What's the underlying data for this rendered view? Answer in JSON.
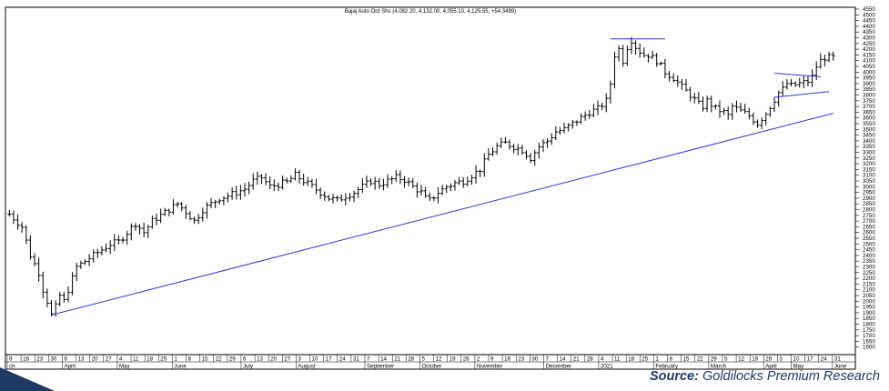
{
  "chart_data": {
    "type": "ohlc",
    "title": "Bajaj Auto Ord Shs (4,082.20, 4,132.00, 4,055.10, 4,125.55, +54.3499)",
    "ylim": [
      1550,
      4550
    ],
    "ylabels": [
      "4550",
      "4500",
      "4450",
      "4400",
      "4350",
      "4300",
      "4250",
      "4200",
      "4150",
      "4100",
      "4050",
      "4000",
      "3950",
      "3900",
      "3850",
      "3800",
      "3750",
      "3700",
      "3650",
      "3600",
      "3550",
      "3500",
      "3450",
      "3400",
      "3350",
      "3300",
      "3250",
      "3200",
      "3150",
      "3100",
      "3050",
      "3000",
      "2950",
      "2900",
      "2850",
      "2800",
      "2750",
      "2700",
      "2650",
      "2600",
      "2550",
      "2500",
      "2450",
      "2400",
      "2350",
      "2300",
      "2250",
      "2200",
      "2150",
      "2100",
      "2050",
      "2000",
      "1950",
      "1900",
      "1850",
      "1800",
      "1750",
      "1700",
      "1650",
      "1600"
    ],
    "date_ticks": [
      "9",
      "16",
      "23",
      "30",
      "6",
      "13",
      "20",
      "27",
      "4",
      "11",
      "18",
      "25",
      "1",
      "8",
      "15",
      "22",
      "29",
      "6",
      "13",
      "20",
      "27",
      "3",
      "10",
      "17",
      "24",
      "31",
      "7",
      "14",
      "21",
      "28",
      "5",
      "12",
      "19",
      "26",
      "2",
      "9",
      "16",
      "23",
      "30",
      "7",
      "14",
      "21",
      "28",
      "4",
      "11",
      "18",
      "25",
      "1",
      "8",
      "15",
      "22",
      "29",
      "5",
      "12",
      "19",
      "26",
      "3",
      "10",
      "17",
      "24",
      "31"
    ],
    "month_labels": [
      "ch",
      "April",
      "May",
      "June",
      "July",
      "August",
      "September",
      "October",
      "November",
      "December",
      "2021",
      "February",
      "March",
      "April",
      "May",
      "June"
    ],
    "series": [
      {
        "path": [
          [
            0,
            2760
          ],
          [
            3,
            2650
          ],
          [
            5,
            2400
          ],
          [
            7,
            2250
          ],
          [
            8,
            2100
          ],
          [
            9,
            2000
          ],
          [
            10,
            1880
          ],
          [
            11,
            1950
          ],
          [
            12,
            2050
          ],
          [
            13,
            2000
          ],
          [
            14,
            2100
          ],
          [
            16,
            2300
          ],
          [
            18,
            2350
          ],
          [
            20,
            2400
          ],
          [
            22,
            2450
          ],
          [
            24,
            2500
          ],
          [
            26,
            2520
          ],
          [
            28,
            2600
          ],
          [
            30,
            2680
          ],
          [
            32,
            2600
          ],
          [
            34,
            2700
          ],
          [
            36,
            2750
          ],
          [
            38,
            2800
          ],
          [
            40,
            2850
          ],
          [
            42,
            2780
          ],
          [
            44,
            2700
          ],
          [
            46,
            2800
          ],
          [
            48,
            2850
          ],
          [
            50,
            2900
          ],
          [
            52,
            2920
          ],
          [
            54,
            2950
          ],
          [
            56,
            2980
          ],
          [
            58,
            3050
          ],
          [
            60,
            3080
          ],
          [
            62,
            3000
          ],
          [
            64,
            3020
          ],
          [
            66,
            3040
          ],
          [
            68,
            3100
          ],
          [
            70,
            3050
          ],
          [
            72,
            3000
          ],
          [
            74,
            2950
          ],
          [
            76,
            2900
          ],
          [
            78,
            2880
          ],
          [
            80,
            2920
          ],
          [
            82,
            2950
          ],
          [
            84,
            3000
          ],
          [
            86,
            3050
          ],
          [
            88,
            3020
          ],
          [
            90,
            3050
          ],
          [
            92,
            3080
          ],
          [
            94,
            3060
          ],
          [
            96,
            3000
          ],
          [
            98,
            2950
          ],
          [
            99,
            2900
          ],
          [
            100,
            2880
          ],
          [
            102,
            2950
          ],
          [
            104,
            3000
          ],
          [
            106,
            3030
          ],
          [
            108,
            3050
          ],
          [
            110,
            3100
          ],
          [
            112,
            3150
          ],
          [
            114,
            3280
          ],
          [
            116,
            3350
          ],
          [
            118,
            3380
          ],
          [
            120,
            3350
          ],
          [
            122,
            3320
          ],
          [
            124,
            3250
          ],
          [
            126,
            3350
          ],
          [
            128,
            3400
          ],
          [
            130,
            3480
          ],
          [
            132,
            3500
          ],
          [
            134,
            3550
          ],
          [
            136,
            3600
          ],
          [
            138,
            3650
          ],
          [
            140,
            3680
          ],
          [
            142,
            3750
          ],
          [
            143,
            3900
          ],
          [
            144,
            4150
          ],
          [
            145,
            4200
          ],
          [
            146,
            4100
          ],
          [
            147,
            4220
          ],
          [
            148,
            4280
          ],
          [
            149,
            4220
          ],
          [
            150,
            4180
          ],
          [
            151,
            4150
          ],
          [
            152,
            4150
          ],
          [
            154,
            4100
          ],
          [
            156,
            4000
          ],
          [
            158,
            3950
          ],
          [
            160,
            3870
          ],
          [
            162,
            3800
          ],
          [
            164,
            3720
          ],
          [
            165,
            3700
          ],
          [
            166,
            3750
          ],
          [
            168,
            3680
          ],
          [
            170,
            3650
          ],
          [
            171,
            3620
          ],
          [
            172,
            3700
          ],
          [
            174,
            3660
          ],
          [
            176,
            3620
          ],
          [
            178,
            3550
          ],
          [
            180,
            3640
          ],
          [
            181,
            3700
          ],
          [
            182,
            3760
          ],
          [
            183,
            3820
          ],
          [
            184,
            3850
          ],
          [
            185,
            3900
          ],
          [
            186,
            3880
          ],
          [
            188,
            3900
          ],
          [
            190,
            3920
          ],
          [
            191,
            3960
          ],
          [
            192,
            4050
          ],
          [
            193,
            4100
          ],
          [
            194,
            4126
          ]
        ]
      }
    ],
    "lines": [
      {
        "name": "trendline-support",
        "from": [
          10,
          1880
        ],
        "to": [
          196,
          3640
        ],
        "color": "#3333dd"
      },
      {
        "name": "resistance-top",
        "from": [
          143,
          4290
        ],
        "to": [
          156,
          4290
        ],
        "color": "#3333dd"
      },
      {
        "name": "flag-upper",
        "from": [
          182,
          3990
        ],
        "to": [
          193,
          3960
        ],
        "color": "#3333dd"
      },
      {
        "name": "flag-lower",
        "from": [
          182,
          3780
        ],
        "to": [
          195,
          3830
        ],
        "color": "#3333dd"
      }
    ]
  },
  "source": {
    "label": "Source:",
    "text": " Goldilocks Premium Research"
  }
}
